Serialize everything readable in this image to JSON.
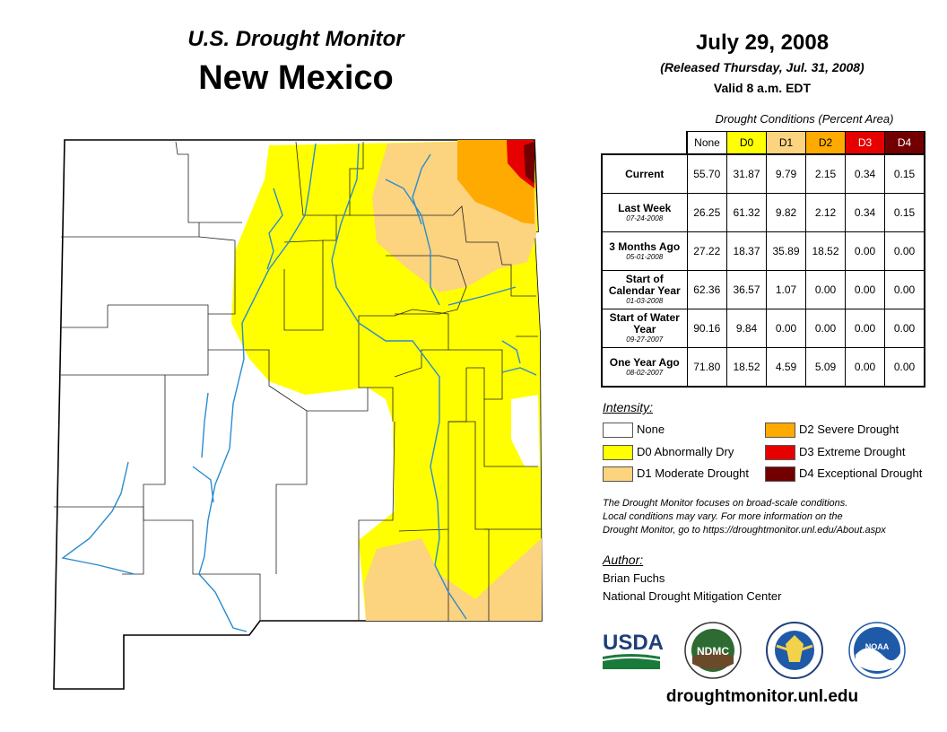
{
  "header": {
    "title": "U.S. Drought Monitor",
    "state": "New Mexico",
    "date": "July 29, 2008",
    "released": "(Released Thursday, Jul. 31, 2008)",
    "valid": "Valid 8 a.m. EDT"
  },
  "table": {
    "caption": "Drought Conditions (Percent Area)",
    "columns": [
      "None",
      "D0",
      "D1",
      "D2",
      "D3",
      "D4"
    ],
    "rows": [
      {
        "label": "Current",
        "date": "",
        "values": [
          "55.70",
          "31.87",
          "9.79",
          "2.15",
          "0.34",
          "0.15"
        ]
      },
      {
        "label": "Last Week",
        "date": "07-24-2008",
        "values": [
          "26.25",
          "61.32",
          "9.82",
          "2.12",
          "0.34",
          "0.15"
        ]
      },
      {
        "label": "3 Months Ago",
        "date": "05-01-2008",
        "values": [
          "27.22",
          "18.37",
          "35.89",
          "18.52",
          "0.00",
          "0.00"
        ]
      },
      {
        "label": "Start of Calendar Year",
        "date": "01-03-2008",
        "values": [
          "62.36",
          "36.57",
          "1.07",
          "0.00",
          "0.00",
          "0.00"
        ]
      },
      {
        "label": "Start of Water Year",
        "date": "09-27-2007",
        "values": [
          "90.16",
          "9.84",
          "0.00",
          "0.00",
          "0.00",
          "0.00"
        ]
      },
      {
        "label": "One Year Ago",
        "date": "08-02-2007",
        "values": [
          "71.80",
          "18.52",
          "4.59",
          "5.09",
          "0.00",
          "0.00"
        ]
      }
    ]
  },
  "legend": {
    "title": "Intensity:",
    "items": [
      {
        "label": "None",
        "color": "#ffffff"
      },
      {
        "label": "D0 Abnormally Dry",
        "color": "#ffff00"
      },
      {
        "label": "D1 Moderate Drought",
        "color": "#fcd37f"
      },
      {
        "label": "D2 Severe Drought",
        "color": "#ffaa00"
      },
      {
        "label": "D3 Extreme Drought",
        "color": "#e60000"
      },
      {
        "label": "D4 Exceptional Drought",
        "color": "#730000"
      }
    ]
  },
  "note": {
    "line1": "The Drought Monitor focuses on broad-scale conditions.",
    "line2": "Local conditions may vary. For more information on the",
    "line3": "Drought Monitor, go to https://droughtmonitor.unl.edu/About.aspx"
  },
  "author": {
    "title": "Author:",
    "name": "Brian Fuchs",
    "org": "National Drought Mitigation Center"
  },
  "logos": {
    "usda": "USDA",
    "ndmc": "NDMC",
    "noaa": "NOAA"
  },
  "website": "droughtmonitor.unl.edu"
}
